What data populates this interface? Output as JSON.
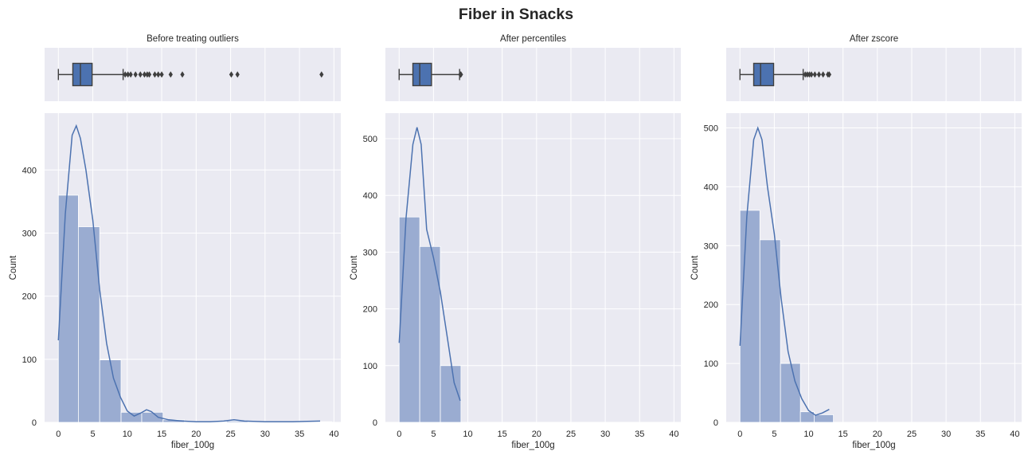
{
  "suptitle": "Fiber in Snacks",
  "colors": {
    "axes_bg": "#EAEAF2",
    "grid": "#FFFFFF",
    "box_fill": "#4C72B0",
    "box_edge": "#3F3F3F",
    "bar_fill": "#9AACD1",
    "kde_line": "#4C72B0",
    "text": "#262626"
  },
  "chart_data": [
    {
      "type": "histogram",
      "title": "Before treating outliers",
      "xlabel": "fiber_100g",
      "ylabel": "Count",
      "xlim": [
        -2,
        41
      ],
      "ylim": [
        0,
        490
      ],
      "xticks": [
        0,
        5,
        10,
        15,
        20,
        25,
        30,
        35,
        40
      ],
      "yticks": [
        0,
        100,
        200,
        300,
        400
      ],
      "grid": true,
      "bins": [
        {
          "x0": 0,
          "x1": 2.9,
          "count": 360
        },
        {
          "x0": 2.9,
          "x1": 6.0,
          "count": 310
        },
        {
          "x0": 6.0,
          "x1": 9.1,
          "count": 99
        },
        {
          "x0": 9.1,
          "x1": 12.1,
          "count": 16
        },
        {
          "x0": 12.1,
          "x1": 15.2,
          "count": 16
        },
        {
          "x0": 15.2,
          "x1": 18.3,
          "count": 4
        },
        {
          "x0": 18.3,
          "x1": 21.3,
          "count": 1
        },
        {
          "x0": 21.3,
          "x1": 24.4,
          "count": 1
        },
        {
          "x0": 24.4,
          "x1": 27.5,
          "count": 2
        },
        {
          "x0": 27.5,
          "x1": 30.5,
          "count": 0
        },
        {
          "x0": 30.5,
          "x1": 33.6,
          "count": 0
        },
        {
          "x0": 33.6,
          "x1": 36.6,
          "count": 0
        },
        {
          "x0": 36.6,
          "x1": 39.7,
          "count": 1
        }
      ],
      "kde": [
        [
          0,
          130
        ],
        [
          1,
          330
        ],
        [
          2,
          455
        ],
        [
          2.6,
          470
        ],
        [
          3.2,
          450
        ],
        [
          4,
          400
        ],
        [
          5,
          320
        ],
        [
          6,
          210
        ],
        [
          7,
          125
        ],
        [
          8,
          70
        ],
        [
          9,
          40
        ],
        [
          10,
          18
        ],
        [
          11,
          10
        ],
        [
          12,
          15
        ],
        [
          12.8,
          20
        ],
        [
          13.5,
          17
        ],
        [
          14.5,
          8
        ],
        [
          16,
          4
        ],
        [
          18,
          2
        ],
        [
          20,
          1
        ],
        [
          22,
          1
        ],
        [
          24,
          2
        ],
        [
          25.5,
          4
        ],
        [
          27,
          2
        ],
        [
          30,
          1
        ],
        [
          34,
          1
        ],
        [
          38,
          2
        ]
      ],
      "box": {
        "min": 0,
        "q1": 2.1,
        "median": 3.2,
        "q3": 4.9,
        "whisker_high": 9.4,
        "fliers": [
          9.7,
          10.1,
          10.5,
          11.2,
          11.9,
          12.5,
          12.9,
          13.2,
          14.0,
          14.5,
          15.0,
          16.3,
          18.0,
          25.1,
          26.0,
          38.2
        ]
      }
    },
    {
      "type": "histogram",
      "title": "After percentiles",
      "xlabel": "fiber_100g",
      "ylabel": "Count",
      "xlim": [
        -2,
        41
      ],
      "ylim": [
        0,
        545
      ],
      "xticks": [
        0,
        5,
        10,
        15,
        20,
        25,
        30,
        35,
        40
      ],
      "yticks": [
        0,
        100,
        200,
        300,
        400,
        500
      ],
      "grid": true,
      "bins": [
        {
          "x0": 0,
          "x1": 3.0,
          "count": 362
        },
        {
          "x0": 3.0,
          "x1": 6.0,
          "count": 310
        },
        {
          "x0": 6.0,
          "x1": 9.0,
          "count": 100
        }
      ],
      "kde": [
        [
          0,
          140
        ],
        [
          1,
          360
        ],
        [
          2,
          490
        ],
        [
          2.6,
          520
        ],
        [
          3.2,
          490
        ],
        [
          4,
          340
        ],
        [
          5,
          290
        ],
        [
          6,
          230
        ],
        [
          7,
          150
        ],
        [
          8,
          70
        ],
        [
          8.9,
          38
        ]
      ],
      "box": {
        "min": 0,
        "q1": 2.0,
        "median": 3.0,
        "q3": 4.7,
        "whisker_high": 8.8,
        "fliers": [
          8.9,
          8.95,
          9.0
        ]
      }
    },
    {
      "type": "histogram",
      "title": "After zscore",
      "xlabel": "fiber_100g",
      "ylabel": "Count",
      "xlim": [
        -2,
        41
      ],
      "ylim": [
        0,
        525
      ],
      "xticks": [
        0,
        5,
        10,
        15,
        20,
        25,
        30,
        35,
        40
      ],
      "yticks": [
        0,
        100,
        200,
        300,
        400,
        500
      ],
      "grid": true,
      "bins": [
        {
          "x0": 0,
          "x1": 2.9,
          "count": 360
        },
        {
          "x0": 2.9,
          "x1": 5.9,
          "count": 310
        },
        {
          "x0": 5.9,
          "x1": 8.8,
          "count": 100
        },
        {
          "x0": 8.8,
          "x1": 10.8,
          "count": 18
        },
        {
          "x0": 10.8,
          "x1": 13.6,
          "count": 13
        }
      ],
      "kde": [
        [
          0,
          130
        ],
        [
          1,
          350
        ],
        [
          2,
          480
        ],
        [
          2.6,
          500
        ],
        [
          3.2,
          480
        ],
        [
          4,
          400
        ],
        [
          5,
          320
        ],
        [
          6,
          210
        ],
        [
          7,
          120
        ],
        [
          8,
          70
        ],
        [
          9,
          40
        ],
        [
          10,
          20
        ],
        [
          11,
          12
        ],
        [
          12,
          16
        ],
        [
          13,
          22
        ]
      ],
      "box": {
        "min": 0,
        "q1": 2.0,
        "median": 3.0,
        "q3": 4.9,
        "whisker_high": 9.2,
        "fliers": [
          9.5,
          9.8,
          10.1,
          10.4,
          10.9,
          11.5,
          12.1,
          12.8,
          13.0
        ]
      }
    }
  ]
}
